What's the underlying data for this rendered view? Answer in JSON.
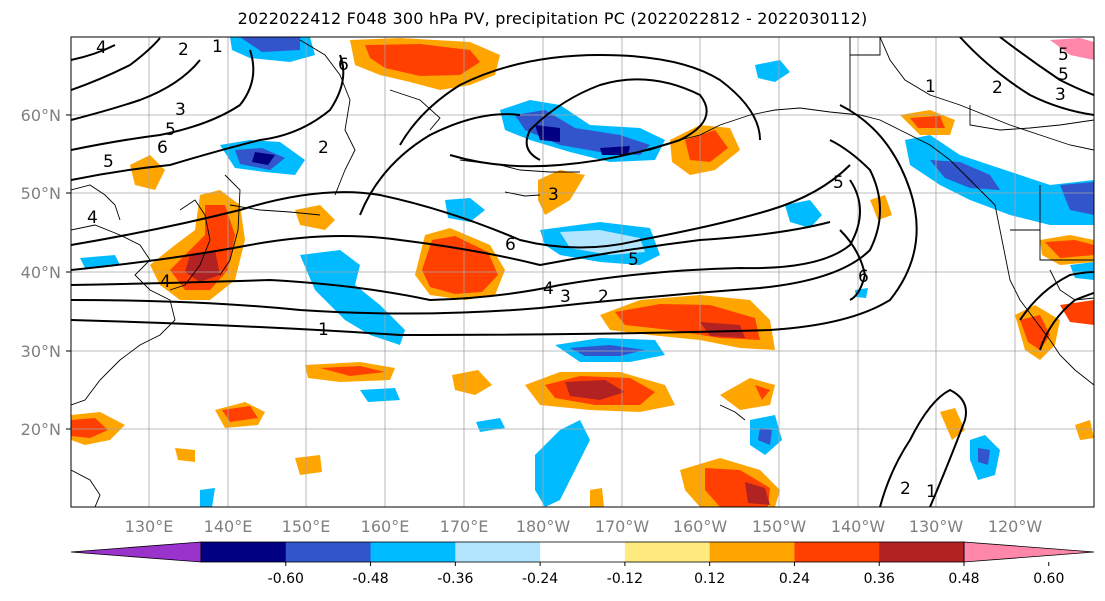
{
  "title": "2022022412 F048 300 hPa PV, precipitation PC (2022022812 - 2022030112)",
  "lat_labels": [
    "60°N",
    "50°N",
    "40°N",
    "30°N",
    "20°N"
  ],
  "lon_labels": [
    "130°E",
    "140°E",
    "150°E",
    "160°E",
    "170°E",
    "180°W",
    "170°W",
    "160°W",
    "150°W",
    "140°W",
    "130°W",
    "120°W"
  ],
  "colorbar": {
    "colors": [
      "#9933cc",
      "#000080",
      "#3355cc",
      "#00bbff",
      "#b3e5ff",
      "#ffffff",
      "#ffeb80",
      "#ffa500",
      "#ff4000",
      "#b22222",
      "#ff88aa"
    ],
    "tick_labels": [
      "-0.60",
      "-0.48",
      "-0.36",
      "-0.24",
      "-0.12",
      "0.12",
      "0.24",
      "0.36",
      "0.48",
      "0.60"
    ]
  },
  "contour_labels": [
    "1",
    "2",
    "3",
    "4",
    "5",
    "6"
  ]
}
